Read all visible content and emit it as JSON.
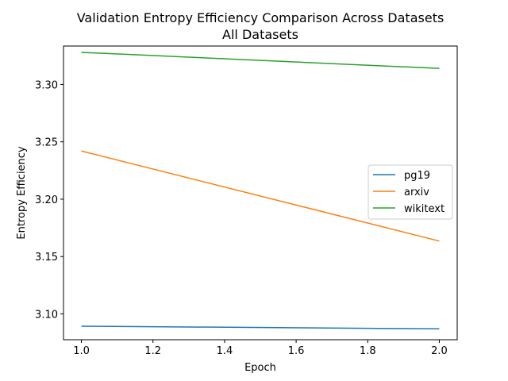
{
  "chart_data": {
    "type": "line",
    "title": "Validation Entropy Efficiency Comparison Across Datasets",
    "subtitle": "All Datasets",
    "xlabel": "Epoch",
    "ylabel": "Entropy Efficiency",
    "xlim": [
      0.95,
      2.05
    ],
    "ylim": [
      3.0775,
      3.3335
    ],
    "xticks": [
      "1.0",
      "1.2",
      "1.4",
      "1.6",
      "1.8",
      "2.0"
    ],
    "yticks": [
      "3.10",
      "3.15",
      "3.20",
      "3.25",
      "3.30"
    ],
    "grid": false,
    "legend_position": "right",
    "series": [
      {
        "name": "pg19",
        "color": "#1f77b4",
        "x": [
          1.0,
          2.0
        ],
        "y": [
          3.0893,
          3.087
        ]
      },
      {
        "name": "arxiv",
        "color": "#ff7f0e",
        "x": [
          1.0,
          2.0
        ],
        "y": [
          3.242,
          3.1635
        ]
      },
      {
        "name": "wikitext",
        "color": "#2ca02c",
        "x": [
          1.0,
          2.0
        ],
        "y": [
          3.328,
          3.314
        ]
      }
    ]
  }
}
